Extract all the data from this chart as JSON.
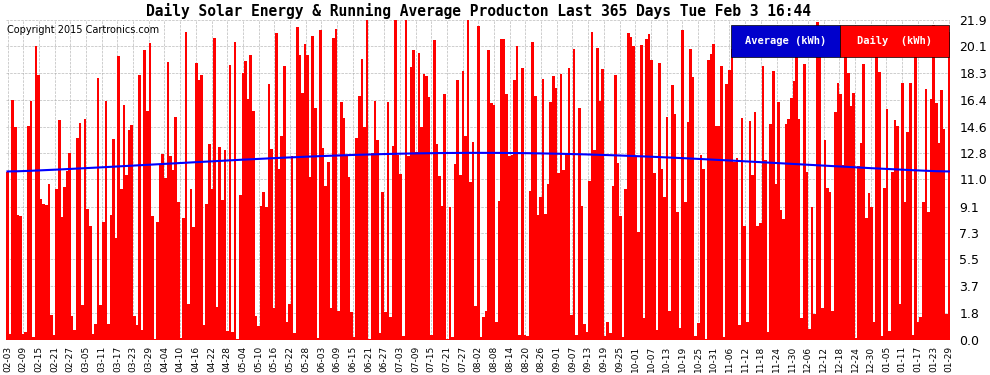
{
  "title": "Daily Solar Energy & Running Average Producton Last 365 Days Tue Feb 3 16:44",
  "copyright": "Copyright 2015 Cartronics.com",
  "bar_color": "#FF0000",
  "avg_line_color": "#0000FF",
  "background_color": "#FFFFFF",
  "grid_color": "#AAAAAA",
  "ylim": [
    0.0,
    21.9
  ],
  "yticks": [
    0.0,
    1.8,
    3.7,
    5.5,
    7.3,
    9.1,
    11.0,
    12.8,
    14.6,
    16.4,
    18.3,
    20.1,
    21.9
  ],
  "legend_avg_label": "Average (kWh)",
  "legend_daily_label": "Daily  (kWh)",
  "legend_avg_bg": "#0000CC",
  "legend_daily_bg": "#FF0000",
  "x_tick_labels": [
    "02-03",
    "02-09",
    "02-15",
    "02-21",
    "02-27",
    "03-05",
    "03-11",
    "03-17",
    "03-23",
    "03-29",
    "04-04",
    "04-10",
    "04-16",
    "04-22",
    "04-28",
    "05-04",
    "05-10",
    "05-16",
    "05-22",
    "05-28",
    "06-03",
    "06-09",
    "06-15",
    "06-21",
    "06-27",
    "07-03",
    "07-09",
    "07-15",
    "07-21",
    "07-27",
    "08-02",
    "08-08",
    "08-14",
    "08-20",
    "08-26",
    "09-01",
    "09-07",
    "09-13",
    "09-19",
    "09-25",
    "10-01",
    "10-07",
    "10-13",
    "10-19",
    "10-25",
    "10-31",
    "11-06",
    "11-12",
    "11-18",
    "11-24",
    "11-30",
    "12-06",
    "12-12",
    "12-18",
    "12-24",
    "12-30",
    "01-05",
    "01-11",
    "01-17",
    "01-23",
    "01-29"
  ],
  "num_days": 365,
  "seed": 42
}
